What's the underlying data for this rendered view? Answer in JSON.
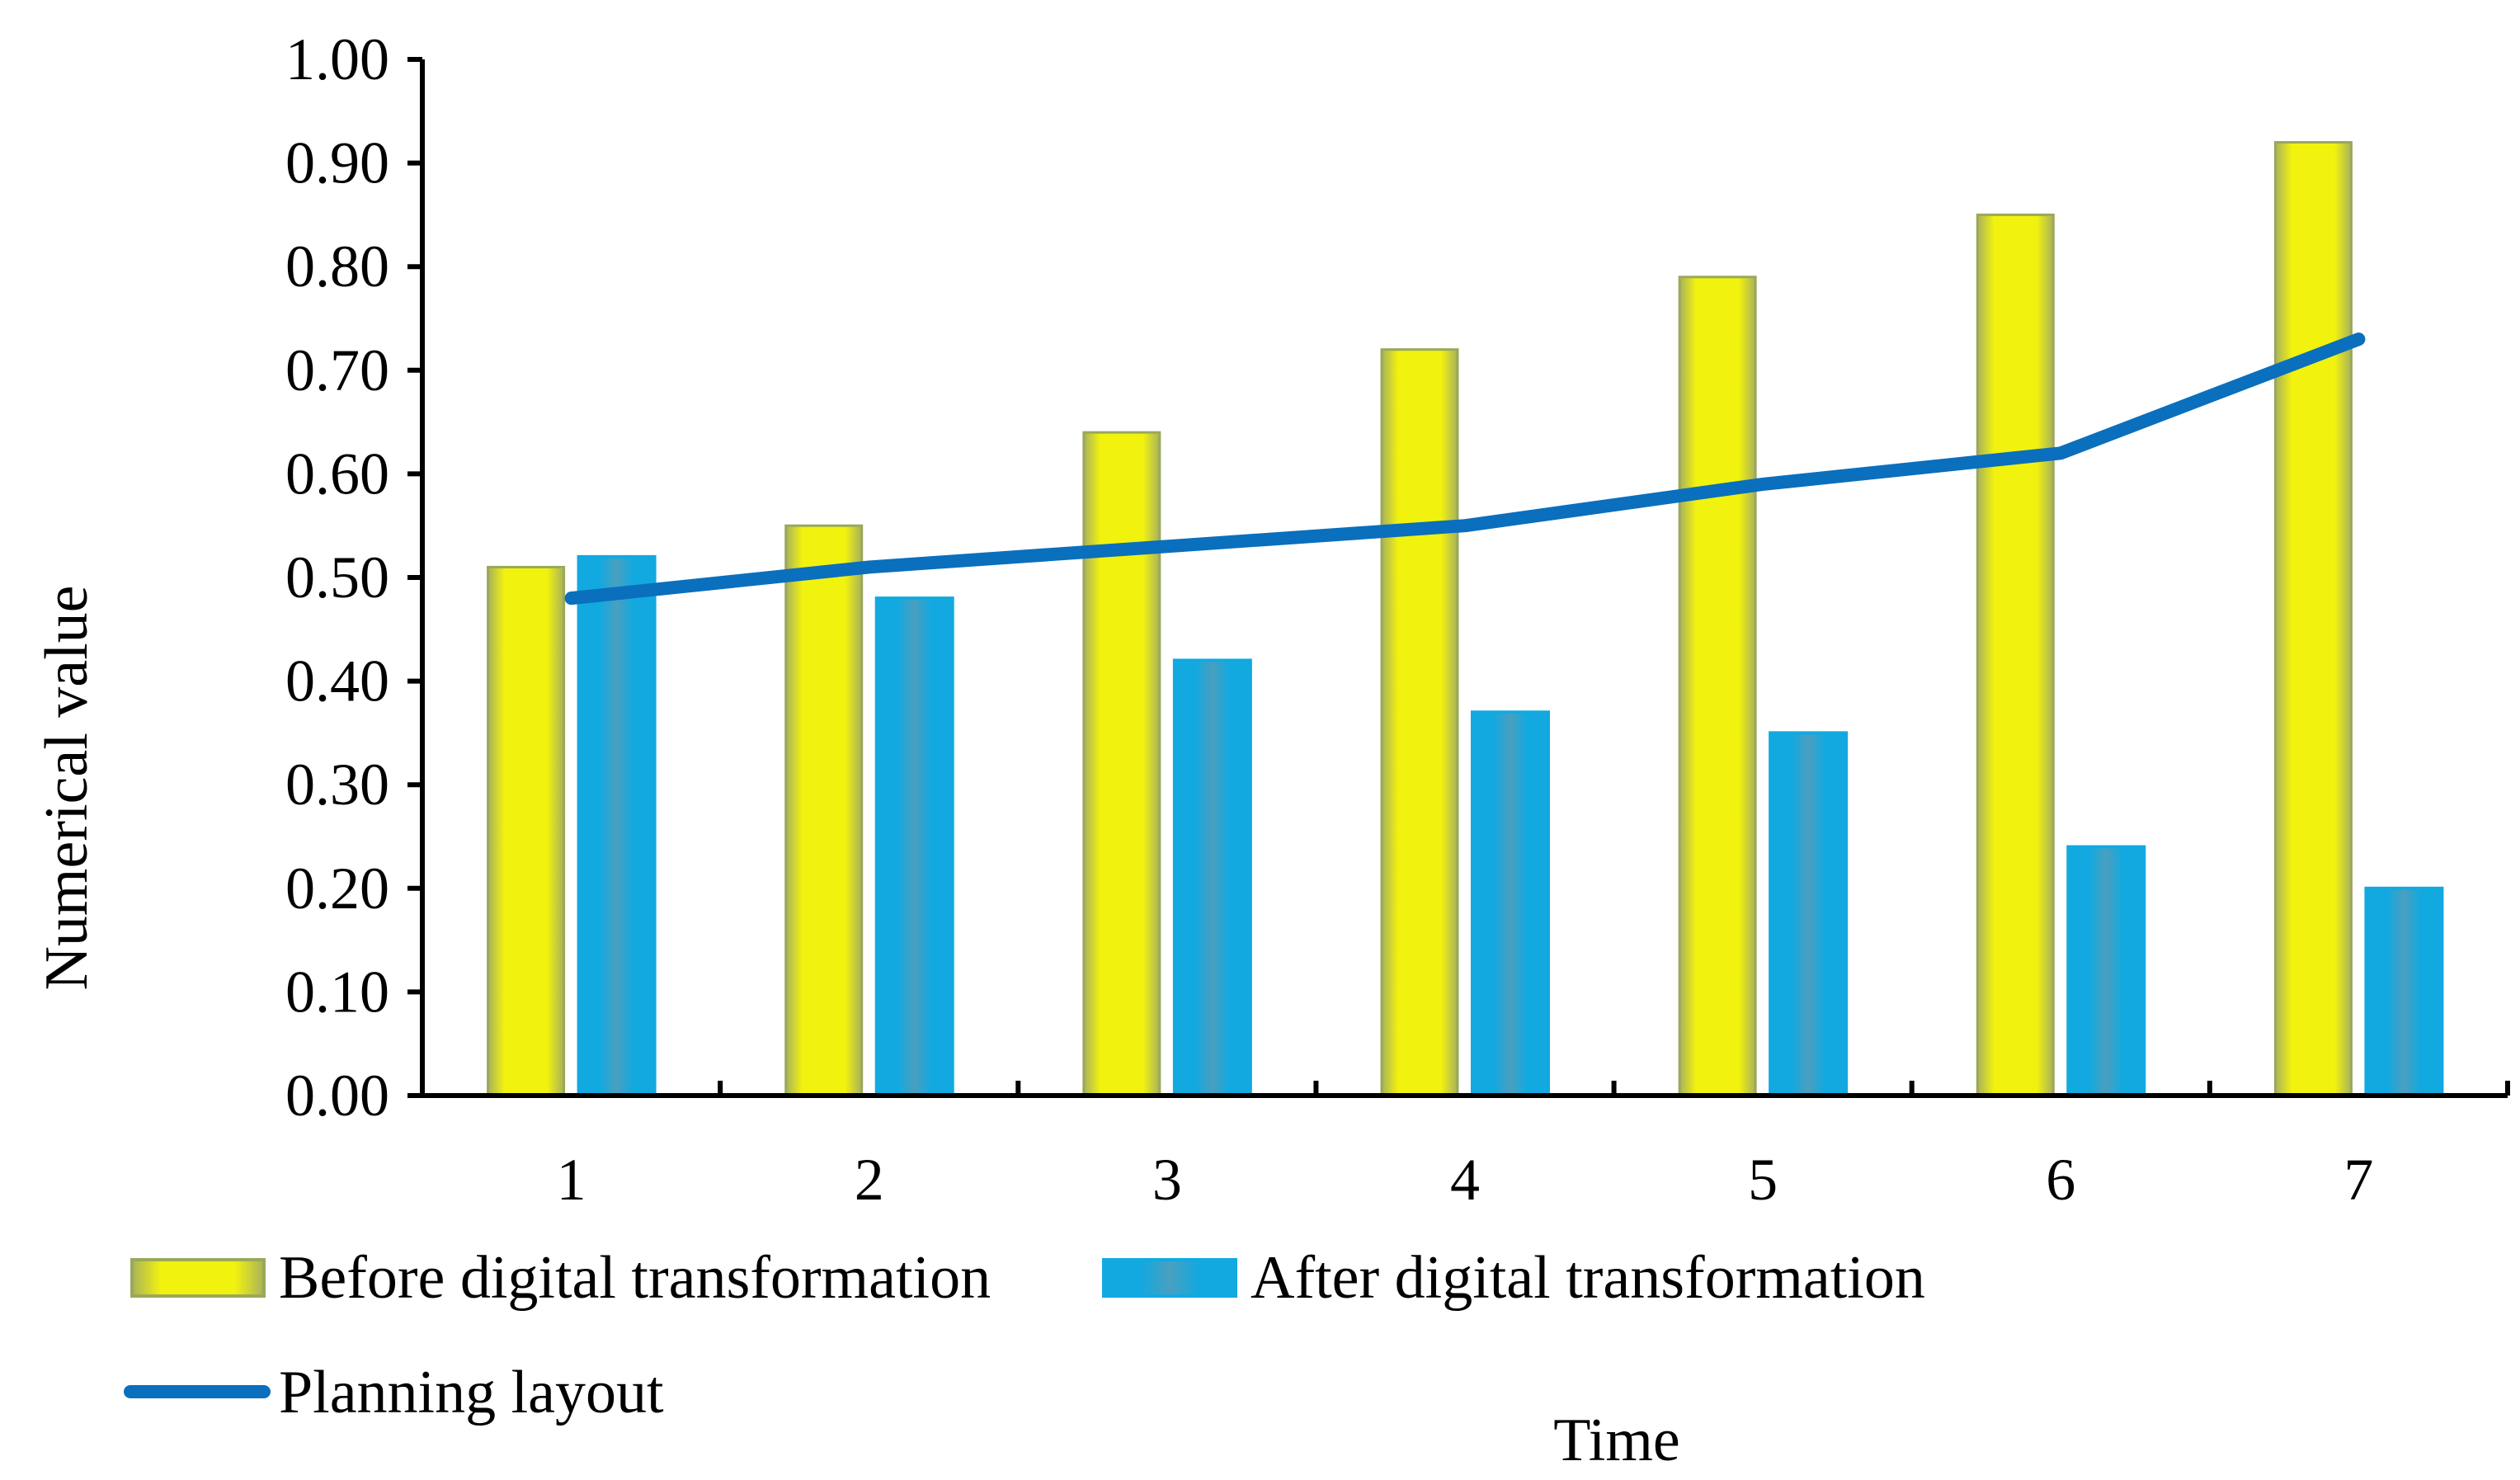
{
  "chart_data": {
    "type": "bar",
    "title": "",
    "xlabel": "Time",
    "ylabel": "Numerical value",
    "categories": [
      "1",
      "2",
      "3",
      "4",
      "5",
      "6",
      "7"
    ],
    "ylim": [
      0,
      1.0
    ],
    "yticks": [
      "0.00",
      "0.10",
      "0.20",
      "0.30",
      "0.40",
      "0.50",
      "0.60",
      "0.70",
      "0.80",
      "0.90",
      "1.00"
    ],
    "grid": false,
    "legend_position": "bottom-left",
    "series": [
      {
        "name": "Before digital transformation",
        "kind": "bar",
        "color": "#f2f20f",
        "edge": "#9aa85a",
        "values": [
          0.51,
          0.55,
          0.64,
          0.72,
          0.79,
          0.85,
          0.92
        ]
      },
      {
        "name": "After digital transformation",
        "kind": "bar",
        "color": "#12a9e0",
        "edge": "#7a8f9a",
        "values": [
          0.52,
          0.48,
          0.42,
          0.37,
          0.35,
          0.24,
          0.2
        ]
      },
      {
        "name": "Planning layout",
        "kind": "line",
        "color": "#0a6fbd",
        "values": [
          0.48,
          0.51,
          0.53,
          0.55,
          0.59,
          0.62,
          0.73
        ]
      }
    ]
  }
}
